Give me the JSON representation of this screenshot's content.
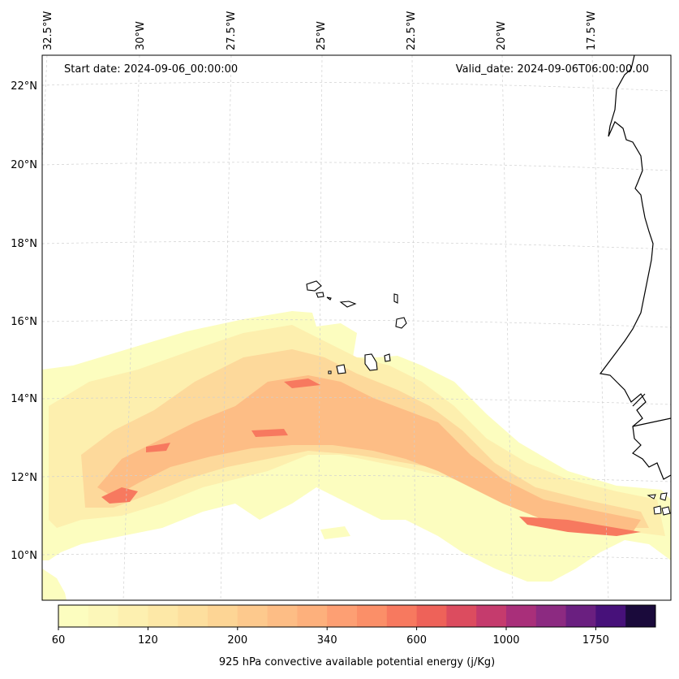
{
  "annotations": {
    "start_date": "Start date: 2024-09-06_00:00:00",
    "valid_date": "Valid_date: 2024-09-06T06:00:00.00"
  },
  "longitude_labels": [
    "32.5°W",
    "30°W",
    "27.5°W",
    "25°W",
    "22.5°W",
    "20°W",
    "17.5°W"
  ],
  "latitude_labels": [
    "22°N",
    "20°N",
    "18°N",
    "16°N",
    "14°N",
    "12°N",
    "10°N"
  ],
  "colorbar": {
    "title": "925 hPa convective available potential energy (j/Kg)",
    "tick_labels": [
      "60",
      "120",
      "200",
      "340",
      "600",
      "1000",
      "1750"
    ],
    "colors": [
      "#fcfdbf",
      "#fcf7b9",
      "#fdf0b0",
      "#fde8a7",
      "#fddf9e",
      "#fdd595",
      "#fdc98d",
      "#fdbd85",
      "#fdb07c",
      "#fd9f73",
      "#fb8f68",
      "#f7795f",
      "#ee6259",
      "#dc4c5f",
      "#c53b6d",
      "#a92f7a",
      "#8c2a81",
      "#6a1f80",
      "#47117a",
      "#1a0a3b"
    ]
  },
  "colors": {
    "coastline": "#000000",
    "gridline": "#d0d0d0"
  }
}
